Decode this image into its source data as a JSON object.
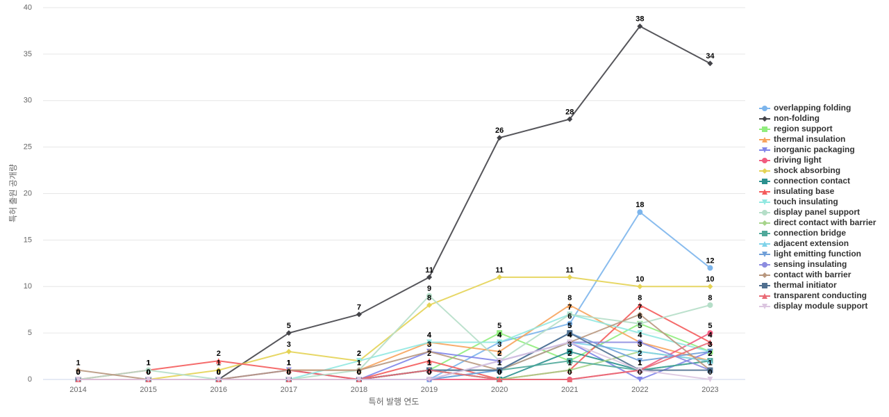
{
  "chart_data": {
    "type": "line",
    "xlabel": "특허 발행 연도",
    "ylabel": "특허 출원 공개량",
    "categories": [
      "2014",
      "2015",
      "2016",
      "2017",
      "2018",
      "2019",
      "2020",
      "2021",
      "2022",
      "2023"
    ],
    "ylim": [
      0,
      40
    ],
    "yticks": [
      0,
      5,
      10,
      15,
      20,
      25,
      30,
      35,
      40
    ],
    "grid": true,
    "legend": "right",
    "series": [
      {
        "name": "overlapping folding",
        "color": "#7cb5ec",
        "marker": "circle",
        "values": [
          0,
          0,
          0,
          0,
          0,
          0,
          4,
          6,
          18,
          12
        ]
      },
      {
        "name": "non-folding",
        "color": "#434348",
        "marker": "diamond",
        "values": [
          null,
          null,
          0,
          5,
          7,
          11,
          26,
          28,
          38,
          34
        ]
      },
      {
        "name": "region support",
        "color": "#90ed7d",
        "marker": "square",
        "values": [
          0,
          0,
          0,
          0,
          0,
          1,
          5,
          2,
          6,
          3
        ]
      },
      {
        "name": "thermal insulation",
        "color": "#f7a35c",
        "marker": "triangle",
        "values": [
          0,
          0,
          0,
          1,
          1,
          4,
          3,
          8,
          4,
          2
        ]
      },
      {
        "name": "inorganic packaging",
        "color": "#8085e9",
        "marker": "triangle-down",
        "values": [
          0,
          0,
          0,
          1,
          0,
          3,
          2,
          4,
          0,
          3
        ]
      },
      {
        "name": "driving light",
        "color": "#f15c80",
        "marker": "circle",
        "values": [
          0,
          0,
          0,
          0,
          0,
          0,
          0,
          0,
          1,
          5
        ]
      },
      {
        "name": "shock absorbing",
        "color": "#e4d354",
        "marker": "diamond",
        "values": [
          null,
          0,
          1,
          3,
          2,
          8,
          11,
          11,
          10,
          10
        ]
      },
      {
        "name": "connection contact",
        "color": "#2b908f",
        "marker": "square",
        "values": [
          0,
          0,
          0,
          0,
          0,
          1,
          0,
          3,
          1,
          2
        ]
      },
      {
        "name": "insulating base",
        "color": "#f45b5b",
        "marker": "triangle",
        "values": [
          0,
          1,
          2,
          1,
          0,
          2,
          0,
          1,
          8,
          4
        ]
      },
      {
        "name": "touch insulating",
        "color": "#91e8e1",
        "marker": "triangle-down",
        "values": [
          0,
          0,
          0,
          0,
          2,
          4,
          4,
          7,
          5,
          3
        ]
      },
      {
        "name": "display panel support",
        "color": "#b5dec8",
        "marker": "circle",
        "values": [
          0,
          1,
          0,
          0,
          1,
          9,
          2,
          7,
          6,
          8
        ]
      },
      {
        "name": "direct contact with barrier",
        "color": "#a6d48a",
        "marker": "diamond",
        "values": [
          0,
          0,
          0,
          0,
          0,
          1,
          0,
          1,
          3,
          2
        ]
      },
      {
        "name": "connection bridge",
        "color": "#4fa89a",
        "marker": "square",
        "values": [
          0,
          0,
          0,
          0,
          0,
          1,
          1,
          2,
          1,
          2
        ]
      },
      {
        "name": "adjacent extension",
        "color": "#7fd3ea",
        "marker": "triangle",
        "values": [
          0,
          0,
          0,
          0,
          0,
          0,
          1,
          4,
          3,
          2
        ]
      },
      {
        "name": "light emitting function",
        "color": "#6f9fd8",
        "marker": "triangle-down",
        "values": [
          0,
          0,
          0,
          0,
          0,
          0,
          1,
          5,
          2,
          3
        ]
      },
      {
        "name": "sensing insulating",
        "color": "#8c8ce0",
        "marker": "circle",
        "values": [
          0,
          0,
          0,
          0,
          0,
          0,
          2,
          4,
          4,
          1
        ]
      },
      {
        "name": "contact with barrier",
        "color": "#b8977e",
        "marker": "diamond",
        "values": [
          1,
          0,
          0,
          1,
          1,
          3,
          1,
          4,
          7,
          1
        ]
      },
      {
        "name": "thermal initiator",
        "color": "#4f6f8f",
        "marker": "square",
        "values": [
          0,
          0,
          0,
          0,
          0,
          1,
          1,
          5,
          1,
          1
        ]
      },
      {
        "name": "transparent conducting",
        "color": "#e96a75",
        "marker": "triangle",
        "values": [
          0,
          0,
          0,
          0,
          0,
          1,
          0,
          0,
          1,
          4
        ]
      },
      {
        "name": "display module support",
        "color": "#dcc6e0",
        "marker": "triangle-down",
        "values": [
          0,
          0,
          0,
          0,
          0,
          0,
          2,
          4,
          1,
          0
        ]
      }
    ]
  }
}
